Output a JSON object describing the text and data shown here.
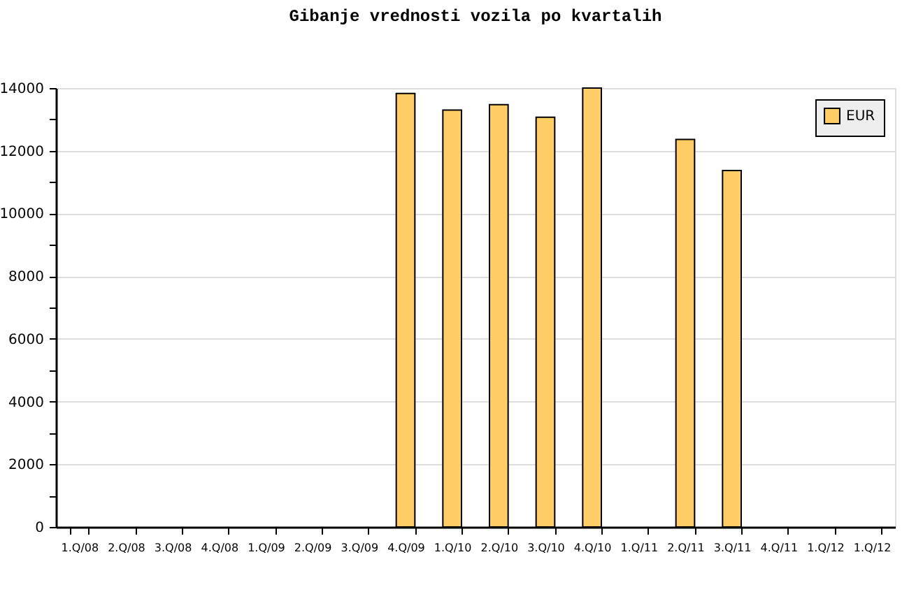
{
  "chart_data": {
    "type": "bar",
    "title": "Gibanje vrednosti vozila po kvartalih",
    "categories": [
      "1.Q/08",
      "2.Q/08",
      "3.Q/08",
      "4.Q/08",
      "1.Q/09",
      "2.Q/09",
      "3.Q/09",
      "4.Q/09",
      "1.Q/10",
      "2.Q/10",
      "3.Q/10",
      "4.Q/10",
      "1.Q/11",
      "2.Q/11",
      "3.Q/11",
      "4.Q/11",
      "1.Q/12",
      "1.Q/12"
    ],
    "series": [
      {
        "name": "EUR",
        "color": "#ffcc66",
        "values": [
          null,
          null,
          null,
          null,
          null,
          null,
          null,
          13830,
          13300,
          13470,
          13070,
          14000,
          null,
          12360,
          11370,
          null,
          null,
          null
        ]
      }
    ],
    "ylim": [
      0,
      14000
    ],
    "yticks": [
      0,
      {
        "value": 1000,
        "label": null
      },
      2000,
      {
        "value": 3000,
        "label": null
      },
      4000,
      {
        "value": 5000,
        "label": null
      },
      6000,
      {
        "value": 7000,
        "label": null
      },
      8000,
      {
        "value": 9000,
        "label": null
      },
      10000,
      {
        "value": 11000,
        "label": null
      },
      12000,
      {
        "value": 13000,
        "label": null
      },
      14000
    ],
    "grid": "y",
    "legend": "top right"
  }
}
